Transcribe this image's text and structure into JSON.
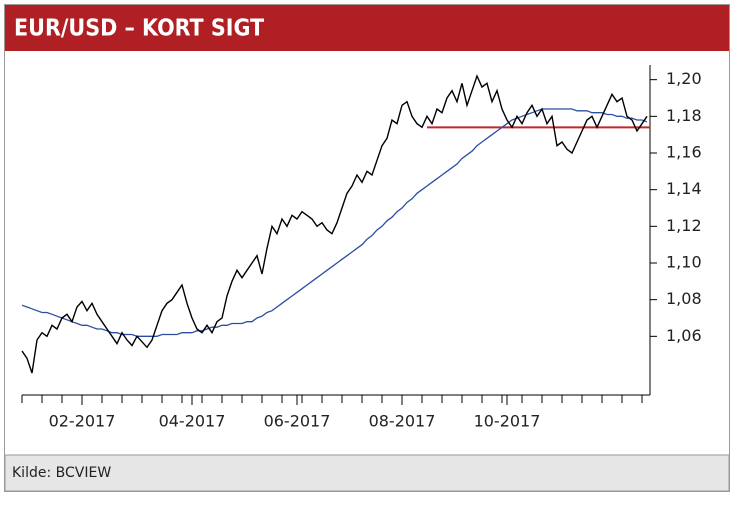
{
  "chart_data": {
    "type": "line",
    "title": "EUR/USD – KORT SIGT",
    "source": "Kilde: BCVIEW",
    "categories": [
      null,
      null,
      null,
      null,
      null,
      null,
      null,
      null,
      null,
      null,
      null,
      null,
      "02-2017",
      null,
      null,
      null,
      null,
      null,
      null,
      null,
      null,
      null,
      null,
      null,
      null,
      null,
      null,
      null,
      null,
      null,
      null,
      null,
      null,
      null,
      "04-2017",
      null,
      null,
      null,
      null,
      null,
      null,
      null,
      null,
      null,
      null,
      null,
      null,
      null,
      null,
      null,
      null,
      null,
      null,
      null,
      null,
      "06-2017",
      null,
      null,
      null,
      null,
      null,
      null,
      null,
      null,
      null,
      null,
      null,
      null,
      null,
      null,
      null,
      null,
      null,
      null,
      null,
      null,
      "08-2017",
      null,
      null,
      null,
      null,
      null,
      null,
      null,
      null,
      null,
      null,
      null,
      null,
      null,
      null,
      null,
      null,
      null,
      null,
      null,
      null,
      "10-2017",
      null,
      null,
      null,
      null,
      null,
      null,
      null,
      null,
      null,
      null,
      null,
      null,
      null,
      null,
      null,
      null,
      null,
      null,
      null,
      null,
      null,
      null,
      null,
      null,
      null,
      null,
      null,
      null
    ],
    "series": [
      {
        "color": "#000000",
        "values": [
          1.052,
          1.048,
          1.04,
          1.058,
          1.062,
          1.06,
          1.066,
          1.064,
          1.07,
          1.072,
          1.068,
          1.076,
          1.079,
          1.074,
          1.078,
          1.072,
          1.068,
          1.064,
          1.06,
          1.056,
          1.062,
          1.058,
          1.055,
          1.06,
          1.057,
          1.054,
          1.058,
          1.066,
          1.074,
          1.078,
          1.08,
          1.084,
          1.088,
          1.078,
          1.07,
          1.064,
          1.062,
          1.066,
          1.062,
          1.068,
          1.07,
          1.082,
          1.09,
          1.096,
          1.092,
          1.096,
          1.1,
          1.104,
          1.094,
          1.108,
          1.12,
          1.116,
          1.124,
          1.12,
          1.126,
          1.124,
          1.128,
          1.126,
          1.124,
          1.12,
          1.122,
          1.118,
          1.116,
          1.122,
          1.13,
          1.138,
          1.142,
          1.148,
          1.144,
          1.15,
          1.148,
          1.156,
          1.164,
          1.168,
          1.178,
          1.176,
          1.186,
          1.188,
          1.18,
          1.176,
          1.174,
          1.18,
          1.176,
          1.184,
          1.182,
          1.19,
          1.194,
          1.188,
          1.198,
          1.186,
          1.194,
          1.202,
          1.196,
          1.198,
          1.188,
          1.194,
          1.184,
          1.178,
          1.174,
          1.18,
          1.176,
          1.182,
          1.186,
          1.18,
          1.184,
          1.176,
          1.18,
          1.164,
          1.166,
          1.162,
          1.16,
          1.166,
          1.172,
          1.178,
          1.18,
          1.174,
          1.18,
          1.186,
          1.192,
          1.188,
          1.19,
          1.18,
          1.178,
          1.172,
          1.176,
          1.18
        ]
      },
      {
        "color": "#2b4fa0",
        "values": [
          1.077,
          1.076,
          1.075,
          1.074,
          1.073,
          1.073,
          1.072,
          1.071,
          1.07,
          1.069,
          1.068,
          1.067,
          1.066,
          1.066,
          1.065,
          1.064,
          1.064,
          1.063,
          1.062,
          1.062,
          1.061,
          1.061,
          1.061,
          1.06,
          1.06,
          1.06,
          1.06,
          1.06,
          1.061,
          1.061,
          1.061,
          1.061,
          1.062,
          1.062,
          1.062,
          1.063,
          1.063,
          1.064,
          1.065,
          1.065,
          1.066,
          1.066,
          1.067,
          1.067,
          1.067,
          1.068,
          1.068,
          1.07,
          1.071,
          1.073,
          1.074,
          1.076,
          1.078,
          1.08,
          1.082,
          1.084,
          1.086,
          1.088,
          1.09,
          1.092,
          1.094,
          1.096,
          1.098,
          1.1,
          1.102,
          1.104,
          1.106,
          1.108,
          1.11,
          1.113,
          1.115,
          1.118,
          1.12,
          1.123,
          1.125,
          1.128,
          1.13,
          1.133,
          1.135,
          1.138,
          1.14,
          1.142,
          1.144,
          1.146,
          1.148,
          1.15,
          1.152,
          1.154,
          1.157,
          1.159,
          1.161,
          1.164,
          1.166,
          1.168,
          1.17,
          1.172,
          1.174,
          1.176,
          1.178,
          1.179,
          1.18,
          1.181,
          1.182,
          1.183,
          1.184,
          1.184,
          1.184,
          1.184,
          1.184,
          1.184,
          1.184,
          1.183,
          1.183,
          1.183,
          1.182,
          1.182,
          1.182,
          1.181,
          1.181,
          1.18,
          1.18,
          1.179,
          1.179,
          1.178,
          1.178,
          1.177
        ]
      }
    ],
    "level": {
      "value": 1.174,
      "start": 81,
      "color": "#c0272d"
    },
    "ylim": [
      1.028,
      1.208
    ],
    "yticks": [
      {
        "value": 1.06,
        "label": "1,06"
      },
      {
        "value": 1.08,
        "label": "1,08"
      },
      {
        "value": 1.1,
        "label": "1,10"
      },
      {
        "value": 1.12,
        "label": "1,12"
      },
      {
        "value": 1.14,
        "label": "1,14"
      },
      {
        "value": 1.16,
        "label": "1,16"
      },
      {
        "value": 1.18,
        "label": "1,18"
      },
      {
        "value": 1.2,
        "label": "1,20"
      }
    ],
    "header_color": "#b01f24"
  }
}
